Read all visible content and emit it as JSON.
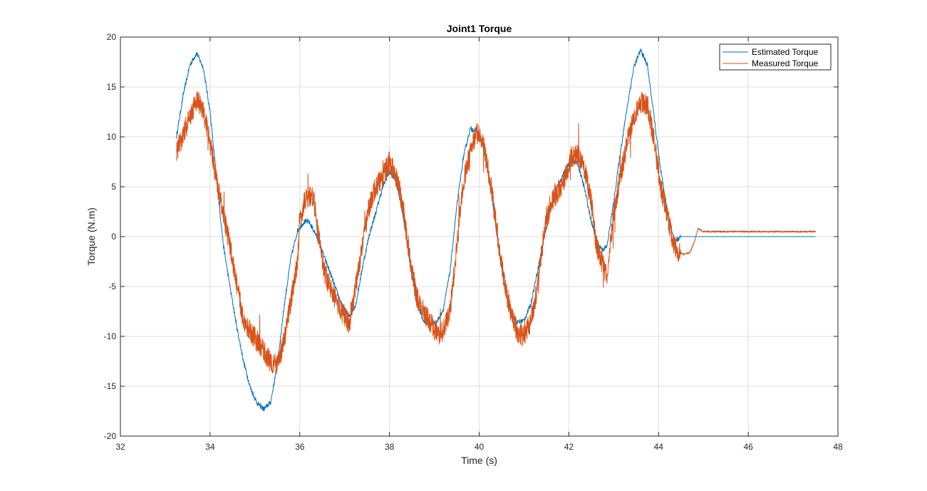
{
  "chart_data": {
    "type": "line",
    "title": "Joint1 Torque",
    "xlabel": "Time (s)",
    "ylabel": "Torque (N.m)",
    "xlim": [
      32,
      48
    ],
    "ylim": [
      -20,
      20
    ],
    "grid": true,
    "legend_position": "top-right",
    "xticks": [
      "32",
      "34",
      "36",
      "38",
      "40",
      "42",
      "44",
      "46",
      "48"
    ],
    "yticks": [
      "20",
      "15",
      "10",
      "5",
      "0",
      "-5",
      "-10",
      "-15",
      "-20"
    ],
    "series": [
      {
        "name": "Estimated Torque",
        "color": "#0072bd",
        "x": [
          33.25,
          33.4,
          33.55,
          33.7,
          33.85,
          34.0,
          34.15,
          34.3,
          34.45,
          34.6,
          34.75,
          34.9,
          35.05,
          35.2,
          35.35,
          35.5,
          35.65,
          35.8,
          35.95,
          36.1,
          36.2,
          36.35,
          36.5,
          36.65,
          36.8,
          36.95,
          37.1,
          37.25,
          37.4,
          37.55,
          37.7,
          37.85,
          38.0,
          38.15,
          38.3,
          38.45,
          38.6,
          38.75,
          38.9,
          39.05,
          39.2,
          39.35,
          39.5,
          39.65,
          39.8,
          39.95,
          40.1,
          40.25,
          40.4,
          40.55,
          40.7,
          40.85,
          41.0,
          41.15,
          41.3,
          41.45,
          41.6,
          41.75,
          41.9,
          42.05,
          42.2,
          42.35,
          42.5,
          42.65,
          42.75,
          42.85,
          43.0,
          43.15,
          43.3,
          43.45,
          43.6,
          43.75,
          43.9,
          44.05,
          44.2,
          44.35,
          44.45,
          44.5,
          45.0,
          46.0,
          47.0,
          47.5
        ],
        "y": [
          10.0,
          14.2,
          17.2,
          18.4,
          16.9,
          12.5,
          5.5,
          -1.0,
          -5.2,
          -9.2,
          -12.6,
          -15.2,
          -16.7,
          -17.3,
          -16.6,
          -12.8,
          -7.0,
          -2.2,
          0.6,
          1.5,
          1.5,
          0.3,
          -1.5,
          -3.3,
          -5.2,
          -7.0,
          -8.0,
          -6.8,
          -3.0,
          0.2,
          2.5,
          5.0,
          6.5,
          5.6,
          2.2,
          -2.5,
          -6.5,
          -8.4,
          -8.8,
          -8.6,
          -7.3,
          -3.5,
          3.0,
          8.0,
          10.8,
          10.6,
          8.8,
          5.2,
          0.0,
          -4.8,
          -7.6,
          -8.6,
          -8.4,
          -6.8,
          -3.5,
          0.0,
          2.8,
          5.0,
          6.5,
          7.6,
          7.3,
          4.8,
          1.5,
          -0.8,
          -1.3,
          -1.0,
          3.5,
          8.5,
          13.0,
          17.0,
          18.7,
          17.2,
          12.0,
          6.5,
          2.5,
          -0.4,
          -0.2,
          0.0,
          0.0,
          0.0,
          0.0,
          0.0
        ]
      },
      {
        "name": "Measured Torque",
        "color": "#d95319",
        "x": [
          33.25,
          33.4,
          33.55,
          33.7,
          33.85,
          34.0,
          34.15,
          34.3,
          34.45,
          34.6,
          34.75,
          34.9,
          35.05,
          35.2,
          35.35,
          35.5,
          35.65,
          35.8,
          35.95,
          36.0,
          36.1,
          36.2,
          36.3,
          36.4,
          36.55,
          36.7,
          36.85,
          37.0,
          37.1,
          37.25,
          37.4,
          37.55,
          37.7,
          37.85,
          38.0,
          38.15,
          38.3,
          38.45,
          38.6,
          38.75,
          38.9,
          39.05,
          39.2,
          39.35,
          39.5,
          39.65,
          39.8,
          39.95,
          40.1,
          40.25,
          40.4,
          40.55,
          40.7,
          40.85,
          41.0,
          41.15,
          41.3,
          41.45,
          41.6,
          41.75,
          41.9,
          42.05,
          42.2,
          42.35,
          42.5,
          42.6,
          42.75,
          42.85,
          43.0,
          43.15,
          43.3,
          43.45,
          43.6,
          43.75,
          43.9,
          44.05,
          44.2,
          44.35,
          44.45,
          44.55,
          44.7,
          44.8,
          44.88,
          45.0,
          45.5,
          46.0,
          46.5,
          47.0,
          47.5
        ],
        "y": [
          8.5,
          10.2,
          12.0,
          13.8,
          12.5,
          9.5,
          5.5,
          2.0,
          -1.0,
          -5.0,
          -8.5,
          -9.5,
          -10.5,
          -11.5,
          -12.5,
          -13.0,
          -10.5,
          -6.5,
          -2.5,
          1.5,
          3.5,
          4.0,
          4.2,
          0.5,
          -3.5,
          -5.5,
          -6.8,
          -8.0,
          -8.6,
          -5.0,
          -0.5,
          3.0,
          5.0,
          6.0,
          7.5,
          6.0,
          3.0,
          -2.0,
          -6.0,
          -7.5,
          -8.5,
          -9.8,
          -9.5,
          -7.5,
          -1.0,
          5.5,
          8.5,
          10.5,
          9.0,
          5.5,
          0.5,
          -4.5,
          -7.5,
          -9.5,
          -10.0,
          -8.5,
          -5.0,
          0.5,
          3.5,
          4.5,
          5.5,
          8.0,
          8.2,
          6.8,
          3.5,
          -0.5,
          -2.8,
          -4.0,
          2.5,
          6.0,
          9.5,
          12.0,
          13.5,
          13.3,
          9.5,
          5.0,
          2.0,
          -1.0,
          -1.5,
          -1.8,
          -1.6,
          -0.5,
          0.8,
          0.5,
          0.5,
          0.5,
          0.5,
          0.5,
          0.5
        ]
      }
    ]
  }
}
